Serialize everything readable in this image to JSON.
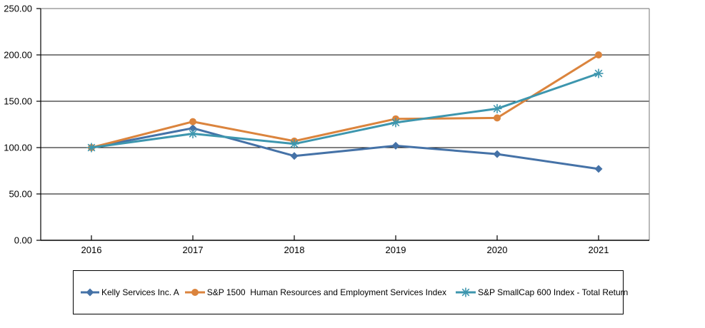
{
  "chart_data": {
    "type": "line",
    "title": "",
    "xlabel": "",
    "ylabel": "",
    "categories": [
      "2016",
      "2017",
      "2018",
      "2019",
      "2020",
      "2021"
    ],
    "ylim": [
      0,
      250
    ],
    "y_ticks": [
      {
        "v": 0,
        "label": "0.00"
      },
      {
        "v": 50,
        "label": "50.00"
      },
      {
        "v": 100,
        "label": "100.00"
      },
      {
        "v": 150,
        "label": "150.00"
      },
      {
        "v": 200,
        "label": "200.00"
      },
      {
        "v": 250,
        "label": "250.00"
      }
    ],
    "grid": "horizontal",
    "legend_position": "bottom",
    "series": [
      {
        "name": "Kelly Services Inc. A",
        "color": "#4572A7",
        "marker": "diamond",
        "values": [
          100,
          121,
          91,
          102,
          93,
          77
        ]
      },
      {
        "name": "S&P 1500  Human Resources and Employment Services Index",
        "color": "#DB843D",
        "marker": "circle",
        "values": [
          100,
          128,
          107,
          131,
          132,
          200
        ]
      },
      {
        "name": "S&P SmallCap 600 Index - Total Return",
        "color": "#3D96AE",
        "marker": "asterisk",
        "values": [
          100,
          115,
          104,
          127,
          142,
          180
        ]
      }
    ]
  },
  "colors": {
    "axis": "#000000",
    "plot_border": "#8C8C8C",
    "grid_line": "#000000",
    "tick_label": "#000000",
    "background": "#FFFFFF"
  }
}
